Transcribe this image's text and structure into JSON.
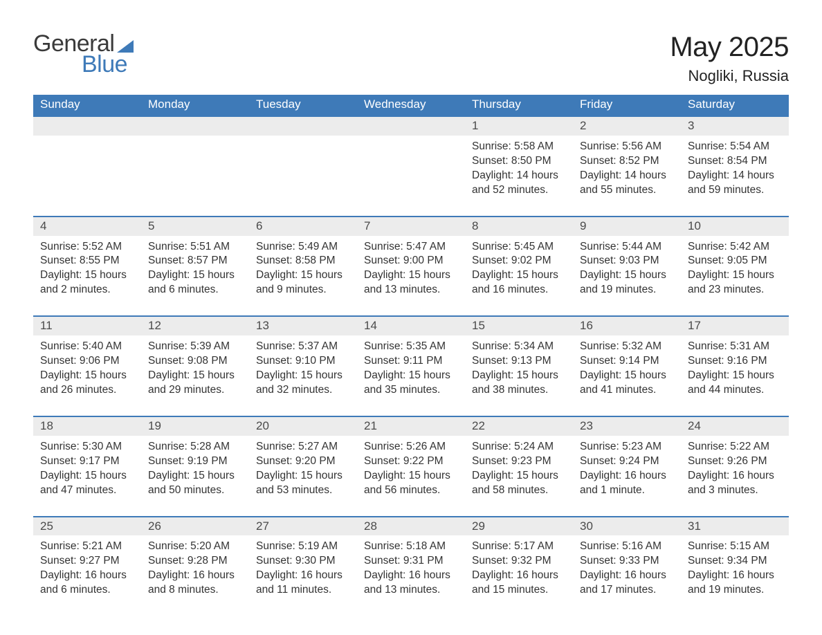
{
  "brand": {
    "word1": "General",
    "word2": "Blue"
  },
  "title": {
    "month": "May 2025",
    "location": "Nogliki, Russia"
  },
  "colors": {
    "header_bg": "#3e7ab8",
    "header_text": "#ffffff",
    "daynum_bg": "#ececec",
    "cell_border": "#3e7ab8",
    "body_text": "#333333",
    "page_bg": "#ffffff"
  },
  "weekdays": [
    "Sunday",
    "Monday",
    "Tuesday",
    "Wednesday",
    "Thursday",
    "Friday",
    "Saturday"
  ],
  "weeks": [
    [
      null,
      null,
      null,
      null,
      {
        "n": "1",
        "sunrise": "Sunrise: 5:58 AM",
        "sunset": "Sunset: 8:50 PM",
        "day1": "Daylight: 14 hours",
        "day2": "and 52 minutes."
      },
      {
        "n": "2",
        "sunrise": "Sunrise: 5:56 AM",
        "sunset": "Sunset: 8:52 PM",
        "day1": "Daylight: 14 hours",
        "day2": "and 55 minutes."
      },
      {
        "n": "3",
        "sunrise": "Sunrise: 5:54 AM",
        "sunset": "Sunset: 8:54 PM",
        "day1": "Daylight: 14 hours",
        "day2": "and 59 minutes."
      }
    ],
    [
      {
        "n": "4",
        "sunrise": "Sunrise: 5:52 AM",
        "sunset": "Sunset: 8:55 PM",
        "day1": "Daylight: 15 hours",
        "day2": "and 2 minutes."
      },
      {
        "n": "5",
        "sunrise": "Sunrise: 5:51 AM",
        "sunset": "Sunset: 8:57 PM",
        "day1": "Daylight: 15 hours",
        "day2": "and 6 minutes."
      },
      {
        "n": "6",
        "sunrise": "Sunrise: 5:49 AM",
        "sunset": "Sunset: 8:58 PM",
        "day1": "Daylight: 15 hours",
        "day2": "and 9 minutes."
      },
      {
        "n": "7",
        "sunrise": "Sunrise: 5:47 AM",
        "sunset": "Sunset: 9:00 PM",
        "day1": "Daylight: 15 hours",
        "day2": "and 13 minutes."
      },
      {
        "n": "8",
        "sunrise": "Sunrise: 5:45 AM",
        "sunset": "Sunset: 9:02 PM",
        "day1": "Daylight: 15 hours",
        "day2": "and 16 minutes."
      },
      {
        "n": "9",
        "sunrise": "Sunrise: 5:44 AM",
        "sunset": "Sunset: 9:03 PM",
        "day1": "Daylight: 15 hours",
        "day2": "and 19 minutes."
      },
      {
        "n": "10",
        "sunrise": "Sunrise: 5:42 AM",
        "sunset": "Sunset: 9:05 PM",
        "day1": "Daylight: 15 hours",
        "day2": "and 23 minutes."
      }
    ],
    [
      {
        "n": "11",
        "sunrise": "Sunrise: 5:40 AM",
        "sunset": "Sunset: 9:06 PM",
        "day1": "Daylight: 15 hours",
        "day2": "and 26 minutes."
      },
      {
        "n": "12",
        "sunrise": "Sunrise: 5:39 AM",
        "sunset": "Sunset: 9:08 PM",
        "day1": "Daylight: 15 hours",
        "day2": "and 29 minutes."
      },
      {
        "n": "13",
        "sunrise": "Sunrise: 5:37 AM",
        "sunset": "Sunset: 9:10 PM",
        "day1": "Daylight: 15 hours",
        "day2": "and 32 minutes."
      },
      {
        "n": "14",
        "sunrise": "Sunrise: 5:35 AM",
        "sunset": "Sunset: 9:11 PM",
        "day1": "Daylight: 15 hours",
        "day2": "and 35 minutes."
      },
      {
        "n": "15",
        "sunrise": "Sunrise: 5:34 AM",
        "sunset": "Sunset: 9:13 PM",
        "day1": "Daylight: 15 hours",
        "day2": "and 38 minutes."
      },
      {
        "n": "16",
        "sunrise": "Sunrise: 5:32 AM",
        "sunset": "Sunset: 9:14 PM",
        "day1": "Daylight: 15 hours",
        "day2": "and 41 minutes."
      },
      {
        "n": "17",
        "sunrise": "Sunrise: 5:31 AM",
        "sunset": "Sunset: 9:16 PM",
        "day1": "Daylight: 15 hours",
        "day2": "and 44 minutes."
      }
    ],
    [
      {
        "n": "18",
        "sunrise": "Sunrise: 5:30 AM",
        "sunset": "Sunset: 9:17 PM",
        "day1": "Daylight: 15 hours",
        "day2": "and 47 minutes."
      },
      {
        "n": "19",
        "sunrise": "Sunrise: 5:28 AM",
        "sunset": "Sunset: 9:19 PM",
        "day1": "Daylight: 15 hours",
        "day2": "and 50 minutes."
      },
      {
        "n": "20",
        "sunrise": "Sunrise: 5:27 AM",
        "sunset": "Sunset: 9:20 PM",
        "day1": "Daylight: 15 hours",
        "day2": "and 53 minutes."
      },
      {
        "n": "21",
        "sunrise": "Sunrise: 5:26 AM",
        "sunset": "Sunset: 9:22 PM",
        "day1": "Daylight: 15 hours",
        "day2": "and 56 minutes."
      },
      {
        "n": "22",
        "sunrise": "Sunrise: 5:24 AM",
        "sunset": "Sunset: 9:23 PM",
        "day1": "Daylight: 15 hours",
        "day2": "and 58 minutes."
      },
      {
        "n": "23",
        "sunrise": "Sunrise: 5:23 AM",
        "sunset": "Sunset: 9:24 PM",
        "day1": "Daylight: 16 hours",
        "day2": "and 1 minute."
      },
      {
        "n": "24",
        "sunrise": "Sunrise: 5:22 AM",
        "sunset": "Sunset: 9:26 PM",
        "day1": "Daylight: 16 hours",
        "day2": "and 3 minutes."
      }
    ],
    [
      {
        "n": "25",
        "sunrise": "Sunrise: 5:21 AM",
        "sunset": "Sunset: 9:27 PM",
        "day1": "Daylight: 16 hours",
        "day2": "and 6 minutes."
      },
      {
        "n": "26",
        "sunrise": "Sunrise: 5:20 AM",
        "sunset": "Sunset: 9:28 PM",
        "day1": "Daylight: 16 hours",
        "day2": "and 8 minutes."
      },
      {
        "n": "27",
        "sunrise": "Sunrise: 5:19 AM",
        "sunset": "Sunset: 9:30 PM",
        "day1": "Daylight: 16 hours",
        "day2": "and 11 minutes."
      },
      {
        "n": "28",
        "sunrise": "Sunrise: 5:18 AM",
        "sunset": "Sunset: 9:31 PM",
        "day1": "Daylight: 16 hours",
        "day2": "and 13 minutes."
      },
      {
        "n": "29",
        "sunrise": "Sunrise: 5:17 AM",
        "sunset": "Sunset: 9:32 PM",
        "day1": "Daylight: 16 hours",
        "day2": "and 15 minutes."
      },
      {
        "n": "30",
        "sunrise": "Sunrise: 5:16 AM",
        "sunset": "Sunset: 9:33 PM",
        "day1": "Daylight: 16 hours",
        "day2": "and 17 minutes."
      },
      {
        "n": "31",
        "sunrise": "Sunrise: 5:15 AM",
        "sunset": "Sunset: 9:34 PM",
        "day1": "Daylight: 16 hours",
        "day2": "and 19 minutes."
      }
    ]
  ]
}
